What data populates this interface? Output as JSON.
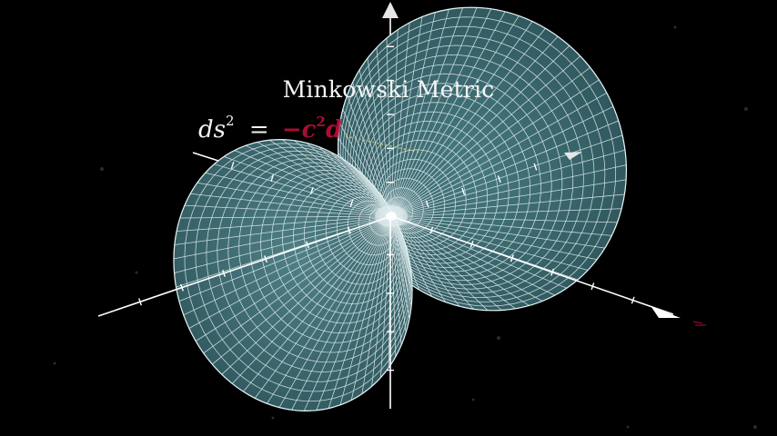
{
  "title": "Minkowski Metric",
  "formula": {
    "lhs_var": "ds",
    "lhs_power": "2",
    "equals": "=",
    "rhs_partial": "−c",
    "rhs_power": "2",
    "rhs_tail": "d"
  },
  "colors": {
    "background": "#000000",
    "surface_fill": "#3f6e74",
    "surface_grid": "#e8f4f6",
    "axis": "#ffffff",
    "formula_term": "#c8103e",
    "dash_highlight": "#e0d070"
  },
  "icons": [
    "up-arrow-icon",
    "right-arrow-icon",
    "front-arrow-icon"
  ]
}
